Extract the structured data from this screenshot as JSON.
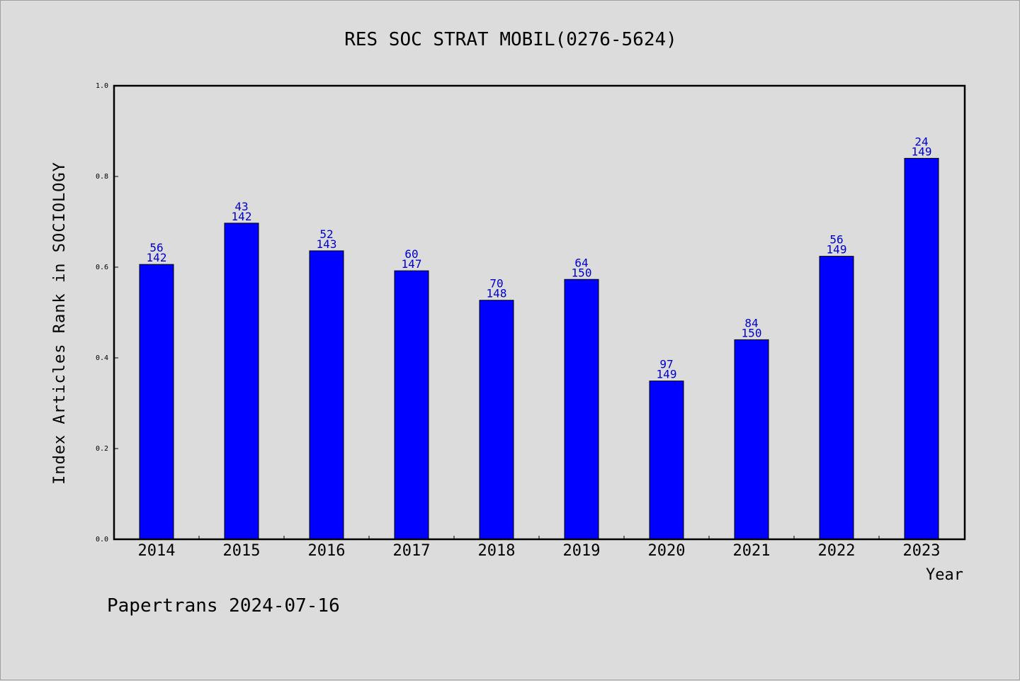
{
  "chart_data": {
    "type": "bar",
    "title": "RES SOC STRAT MOBIL(0276-5624)",
    "xlabel": "Year",
    "ylabel": "Index Articles Rank in SOCIOLOGY",
    "ylim": [
      0,
      1
    ],
    "yticks": [
      "0.0",
      "0.2",
      "0.4",
      "0.6",
      "0.8",
      "1.0"
    ],
    "categories": [
      "2014",
      "2015",
      "2016",
      "2017",
      "2018",
      "2019",
      "2020",
      "2021",
      "2022",
      "2023"
    ],
    "values": [
      0.606,
      0.697,
      0.636,
      0.592,
      0.527,
      0.573,
      0.349,
      0.44,
      0.624,
      0.84
    ],
    "labels_top": [
      "56",
      "43",
      "52",
      "60",
      "70",
      "64",
      "97",
      "84",
      "56",
      "24"
    ],
    "labels_bottom": [
      "142",
      "142",
      "143",
      "147",
      "148",
      "150",
      "149",
      "150",
      "149",
      "149"
    ],
    "bar_color": "#0000ff",
    "label_color": "#0000cc",
    "grid": false
  },
  "footer": "Papertrans 2024-07-16"
}
